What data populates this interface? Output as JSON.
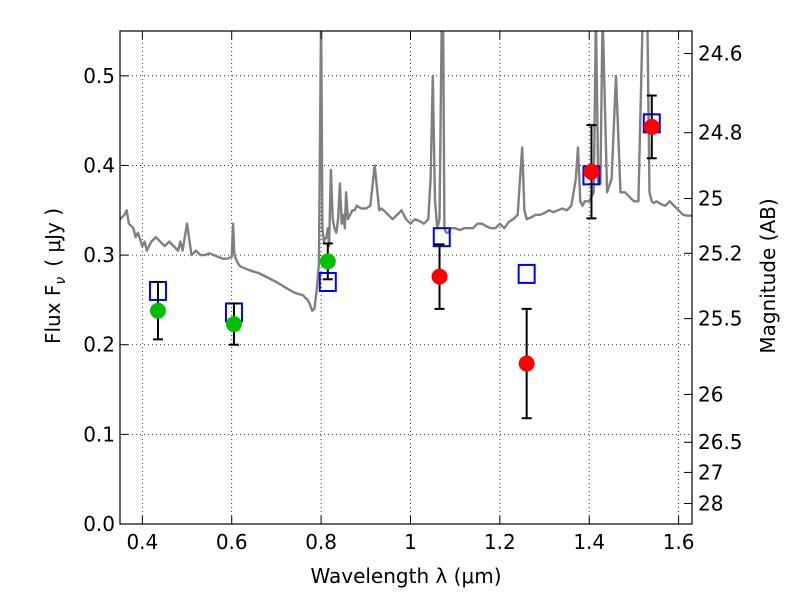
{
  "chart_data": {
    "type": "scatter",
    "xlabel": "Wavelength  λ (μm)",
    "ylabel": "Flux  F",
    "ylabel_subscript": "ν",
    "ylabel_unit": "( μJy )",
    "y2label": "Magnitude (AB)",
    "xlim": [
      0.35,
      1.63
    ],
    "ylim": [
      0.0,
      0.55
    ],
    "grid": true,
    "x_ticks": [
      {
        "value": 0.4,
        "label": "0.4"
      },
      {
        "value": 0.6,
        "label": "0.6"
      },
      {
        "value": 0.8,
        "label": "0.8"
      },
      {
        "value": 1.0,
        "label": "1"
      },
      {
        "value": 1.2,
        "label": "1.2"
      },
      {
        "value": 1.4,
        "label": "1.4"
      },
      {
        "value": 1.6,
        "label": "1.6"
      }
    ],
    "y_ticks": [
      {
        "value": 0.0,
        "label": "0.0"
      },
      {
        "value": 0.1,
        "label": "0.1"
      },
      {
        "value": 0.2,
        "label": "0.2"
      },
      {
        "value": 0.3,
        "label": "0.3"
      },
      {
        "value": 0.4,
        "label": "0.4"
      },
      {
        "value": 0.5,
        "label": "0.5"
      }
    ],
    "y2_ticks": [
      {
        "mag": 24.6,
        "label": "24.6"
      },
      {
        "mag": 24.8,
        "label": "24.8"
      },
      {
        "mag": 25.0,
        "label": "25"
      },
      {
        "mag": 25.2,
        "label": "25.2"
      },
      {
        "mag": 25.5,
        "label": "25.5"
      },
      {
        "mag": 26.0,
        "label": "26"
      },
      {
        "mag": 26.5,
        "label": "26.5"
      },
      {
        "mag": 27.0,
        "label": "27"
      },
      {
        "mag": 28.0,
        "label": "28"
      }
    ],
    "model_spectrum": {
      "color": "#808080",
      "x": [
        0.35,
        0.36,
        0.365,
        0.37,
        0.38,
        0.385,
        0.39,
        0.4,
        0.405,
        0.41,
        0.42,
        0.43,
        0.44,
        0.45,
        0.46,
        0.47,
        0.48,
        0.485,
        0.49,
        0.5,
        0.51,
        0.52,
        0.53,
        0.54,
        0.55,
        0.56,
        0.57,
        0.58,
        0.59,
        0.6,
        0.603,
        0.606,
        0.61,
        0.615,
        0.62,
        0.64,
        0.66,
        0.68,
        0.7,
        0.72,
        0.74,
        0.76,
        0.765,
        0.77,
        0.775,
        0.78,
        0.785,
        0.79,
        0.795,
        0.8,
        0.803,
        0.806,
        0.809,
        0.812,
        0.815,
        0.818,
        0.822,
        0.826,
        0.83,
        0.834,
        0.838,
        0.842,
        0.846,
        0.85,
        0.853,
        0.856,
        0.86,
        0.865,
        0.87,
        0.875,
        0.88,
        0.89,
        0.9,
        0.91,
        0.92,
        0.93,
        0.935,
        0.94,
        0.95,
        0.96,
        0.97,
        0.98,
        0.99,
        1.0,
        1.01,
        1.02,
        1.03,
        1.04,
        1.045,
        1.05,
        1.055,
        1.06,
        1.065,
        1.07,
        1.073,
        1.076,
        1.08,
        1.085,
        1.09,
        1.1,
        1.11,
        1.12,
        1.13,
        1.14,
        1.15,
        1.16,
        1.17,
        1.18,
        1.19,
        1.2,
        1.21,
        1.22,
        1.23,
        1.24,
        1.245,
        1.25,
        1.255,
        1.26,
        1.27,
        1.28,
        1.29,
        1.3,
        1.31,
        1.32,
        1.33,
        1.34,
        1.35,
        1.36,
        1.37,
        1.375,
        1.38,
        1.385,
        1.39,
        1.4,
        1.41,
        1.415,
        1.42,
        1.425,
        1.43,
        1.44,
        1.45,
        1.46,
        1.47,
        1.48,
        1.49,
        1.5,
        1.51,
        1.52,
        1.53,
        1.535,
        1.54,
        1.545,
        1.55,
        1.56,
        1.57,
        1.58,
        1.59,
        1.6,
        1.61,
        1.62,
        1.63
      ],
      "y": [
        0.34,
        0.345,
        0.35,
        0.335,
        0.33,
        0.32,
        0.325,
        0.31,
        0.315,
        0.305,
        0.315,
        0.32,
        0.315,
        0.31,
        0.315,
        0.31,
        0.305,
        0.315,
        0.305,
        0.335,
        0.3,
        0.305,
        0.3,
        0.3,
        0.302,
        0.3,
        0.298,
        0.296,
        0.296,
        0.298,
        0.335,
        0.3,
        0.295,
        0.29,
        0.287,
        0.283,
        0.28,
        0.275,
        0.27,
        0.264,
        0.258,
        0.255,
        0.252,
        0.25,
        0.245,
        0.238,
        0.24,
        0.26,
        0.29,
        0.57,
        0.33,
        0.315,
        0.318,
        0.32,
        0.33,
        0.31,
        0.395,
        0.34,
        0.33,
        0.325,
        0.34,
        0.38,
        0.335,
        0.345,
        0.33,
        0.37,
        0.34,
        0.345,
        0.35,
        0.35,
        0.355,
        0.352,
        0.352,
        0.355,
        0.4,
        0.35,
        0.352,
        0.35,
        0.345,
        0.34,
        0.345,
        0.35,
        0.34,
        0.335,
        0.34,
        0.338,
        0.335,
        0.34,
        0.385,
        0.5,
        0.36,
        0.33,
        0.34,
        0.57,
        0.57,
        0.33,
        0.325,
        0.325,
        0.33,
        0.33,
        0.328,
        0.33,
        0.33,
        0.33,
        0.335,
        0.335,
        0.332,
        0.33,
        0.33,
        0.335,
        0.33,
        0.337,
        0.34,
        0.345,
        0.385,
        0.42,
        0.35,
        0.34,
        0.342,
        0.345,
        0.345,
        0.347,
        0.35,
        0.348,
        0.35,
        0.352,
        0.35,
        0.355,
        0.385,
        0.42,
        0.36,
        0.355,
        0.36,
        0.36,
        0.37,
        0.57,
        0.38,
        0.38,
        0.57,
        0.37,
        0.385,
        0.5,
        0.37,
        0.37,
        0.365,
        0.36,
        0.36,
        0.57,
        0.57,
        0.37,
        0.36,
        0.358,
        0.36,
        0.357,
        0.355,
        0.36,
        0.355,
        0.35,
        0.345,
        0.344,
        0.344
      ]
    },
    "series": [
      {
        "marker": "circle",
        "color": "#00c000",
        "x": [
          0.435,
          0.605,
          0.815
        ],
        "y": [
          0.238,
          0.223,
          0.293
        ],
        "yerr": [
          0.032,
          0.023,
          0.02
        ]
      },
      {
        "marker": "circle",
        "color": "#ff0000",
        "x": [
          1.065,
          1.26,
          1.405,
          1.54
        ],
        "y": [
          0.276,
          0.179,
          0.393,
          0.443
        ],
        "yerr": [
          0.036,
          0.061,
          0.052,
          0.035
        ]
      },
      {
        "marker": "open-square",
        "color": "#0000ff",
        "x": [
          0.435,
          0.605,
          0.815,
          1.07,
          1.26,
          1.405,
          1.54
        ],
        "y": [
          0.26,
          0.236,
          0.27,
          0.32,
          0.279,
          0.389,
          0.447
        ]
      }
    ]
  }
}
